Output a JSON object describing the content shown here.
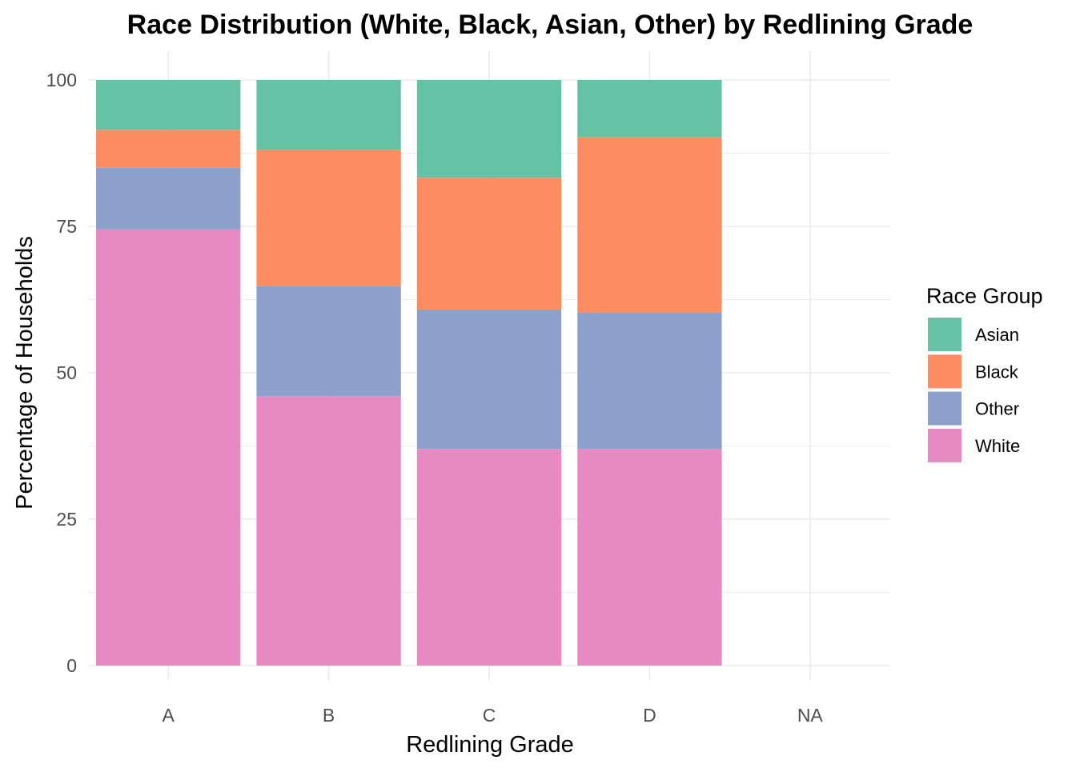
{
  "chart_data": {
    "type": "bar",
    "stacked": true,
    "title": "Race Distribution (White, Black, Asian, Other) by Redlining Grade",
    "xlabel": "Redlining Grade",
    "ylabel": "Percentage of Households",
    "categories": [
      "A",
      "B",
      "C",
      "D",
      "NA"
    ],
    "ylim": [
      0,
      100
    ],
    "yticks": [
      "0",
      "25",
      "50",
      "75",
      "100"
    ],
    "grid": true,
    "legend": {
      "title": "Race Group",
      "position": "right"
    },
    "series": [
      {
        "name": "White",
        "color": "#E78AC3",
        "values": [
          74.5,
          46.0,
          37.0,
          37.0,
          null
        ]
      },
      {
        "name": "Other",
        "color": "#8DA0CB",
        "values": [
          10.5,
          18.8,
          23.8,
          23.3,
          null
        ]
      },
      {
        "name": "Black",
        "color": "#FC8D62",
        "values": [
          6.5,
          23.3,
          22.5,
          29.9,
          null
        ]
      },
      {
        "name": "Asian",
        "color": "#66C2A5",
        "values": [
          8.5,
          11.9,
          16.7,
          9.8,
          null
        ]
      }
    ],
    "legend_order": [
      "Asian",
      "Black",
      "Other",
      "White"
    ]
  }
}
